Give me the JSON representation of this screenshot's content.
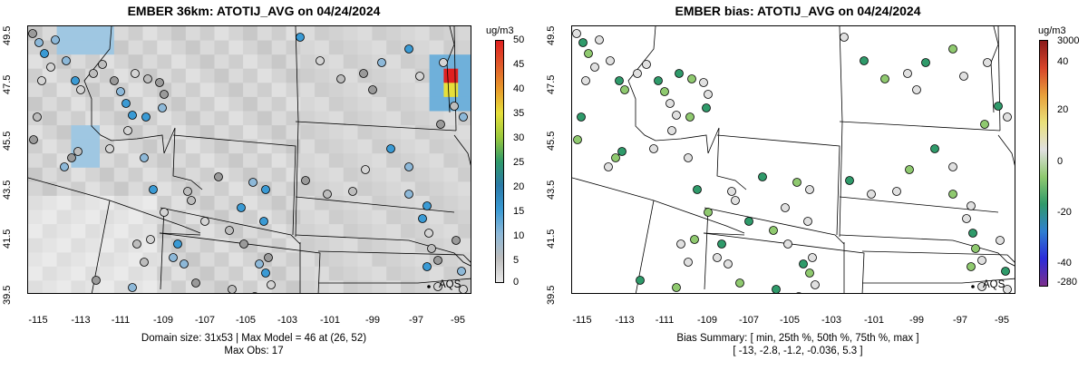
{
  "panels": {
    "model": {
      "title": "EMBER 36km: ATOTIJ_AVG on 04/24/2024",
      "unit": "ug/m3",
      "colorbar_labels": [
        "50",
        "45",
        "40",
        "35",
        "30",
        "25",
        "20",
        "15",
        "10",
        "5",
        "0"
      ],
      "footer_line1": "Domain size: 31x53 | Max Model = 46 at (26, 52)",
      "footer_line2": "Max Obs: 17",
      "legend_point": "AQS"
    },
    "bias": {
      "title": "EMBER bias: ATOTIJ_AVG on 04/24/2024",
      "unit": "ug/m3",
      "colorbar_labels": [
        "3000",
        "40",
        "20",
        "0",
        "-20",
        "-40",
        "-280"
      ],
      "footer_line1": "Bias Summary: [ min, 25th %, 50th %, 75th %, max ]",
      "footer_line2": "[ -13,  -2.8,  -1.2,  -0.036,  5.3 ]",
      "legend_point": "AQS"
    }
  },
  "axes": {
    "x_ticks": [
      "-115",
      "-113",
      "-111",
      "-109",
      "-107",
      "-105",
      "-103",
      "-101",
      "-99",
      "-97",
      "-95"
    ],
    "y_ticks": [
      "49.5",
      "47.5",
      "45.5",
      "43.5",
      "41.5",
      "39.5"
    ]
  },
  "colors": {
    "model_scale": [
      "#e8e8e8",
      "#bdbdbd",
      "#8db8d8",
      "#3a9ad4",
      "#2a7aa8",
      "#2f9a6a",
      "#9ac93c",
      "#e6df3a",
      "#e89a2a",
      "#e05a2a",
      "#e02020"
    ],
    "bias_scale": [
      "#7b2f8c",
      "#2b2bd9",
      "#2f7fd0",
      "#2f9a6a",
      "#8fc96f",
      "#e0e0e0",
      "#e9e07a",
      "#e8a03a",
      "#d8442a",
      "#8b1a1a"
    ]
  }
}
